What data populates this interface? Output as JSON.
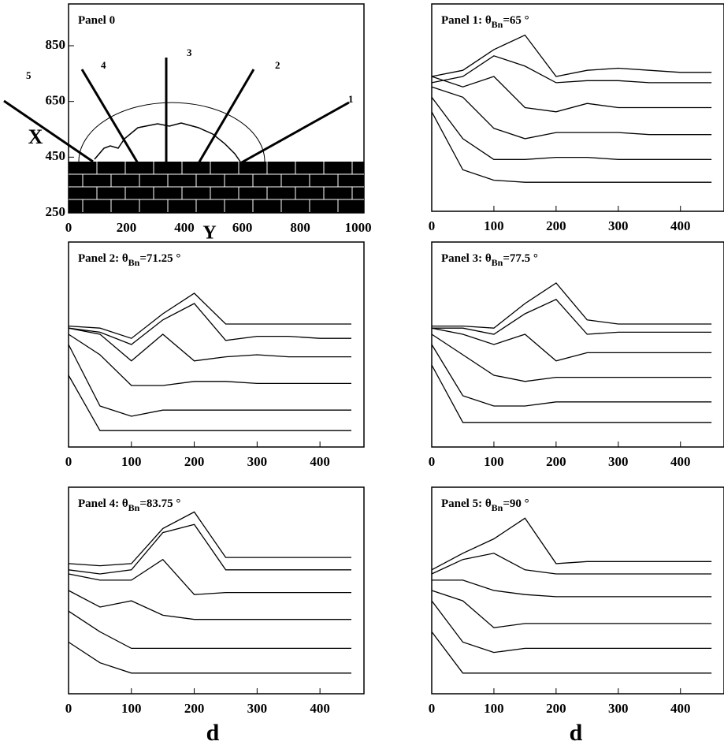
{
  "chart_data": [
    {
      "type": "diagram",
      "title": {
        "text": "Panel 0"
      },
      "xlabel": "Y",
      "ylabel": "X",
      "xlim": [
        0,
        1020
      ],
      "ylim": [
        250,
        1000
      ],
      "xticks": [
        0,
        200,
        400,
        600,
        800,
        1000
      ],
      "yticks": [
        250,
        450,
        650,
        850
      ],
      "ray_labels": [
        "1",
        "2",
        "3",
        "4",
        "5"
      ]
    },
    {
      "type": "line",
      "title": {
        "text": "Panel 1: θ",
        "sub": "Bn",
        "rest": "=65 °"
      },
      "color": "#000000",
      "xlim": [
        0,
        470
      ],
      "ylim": [
        0,
        10
      ],
      "xticks": [
        0,
        100,
        200,
        300,
        400
      ],
      "x": [
        0,
        50,
        100,
        150,
        200,
        250,
        300,
        350,
        400,
        450
      ],
      "series": [
        {
          "values": [
            4.8,
            2.0,
            1.5,
            1.4,
            1.4,
            1.4,
            1.4,
            1.4,
            1.4,
            1.4
          ]
        },
        {
          "values": [
            5.5,
            3.5,
            2.5,
            2.5,
            2.6,
            2.6,
            2.5,
            2.5,
            2.5,
            2.5
          ]
        },
        {
          "values": [
            6.0,
            5.5,
            4.0,
            3.5,
            3.8,
            3.8,
            3.8,
            3.7,
            3.7,
            3.7
          ]
        },
        {
          "values": [
            6.5,
            6.0,
            6.5,
            5.0,
            4.8,
            5.2,
            5.0,
            5.0,
            5.0,
            5.0
          ]
        },
        {
          "values": [
            6.2,
            6.5,
            7.5,
            7.0,
            6.2,
            6.3,
            6.3,
            6.2,
            6.2,
            6.2
          ]
        },
        {
          "values": [
            6.5,
            6.8,
            7.8,
            8.5,
            6.5,
            6.8,
            6.9,
            6.8,
            6.7,
            6.7
          ]
        }
      ]
    },
    {
      "type": "line",
      "title": {
        "text": "Panel 2: θ",
        "sub": "Bn",
        "rest": "=71.25 °"
      },
      "color": "#000000",
      "xlim": [
        0,
        470
      ],
      "ylim": [
        0,
        10
      ],
      "xticks": [
        0,
        100,
        200,
        300,
        400
      ],
      "x": [
        0,
        50,
        100,
        150,
        200,
        250,
        300,
        350,
        400,
        450
      ],
      "series": [
        {
          "values": [
            3.5,
            0.8,
            0.8,
            0.8,
            0.8,
            0.8,
            0.8,
            0.8,
            0.8,
            0.8
          ]
        },
        {
          "values": [
            5.0,
            2.0,
            1.5,
            1.8,
            1.8,
            1.8,
            1.8,
            1.8,
            1.8,
            1.8
          ]
        },
        {
          "values": [
            5.5,
            4.5,
            3.0,
            3.0,
            3.2,
            3.2,
            3.1,
            3.1,
            3.1,
            3.1
          ]
        },
        {
          "values": [
            5.8,
            5.5,
            4.2,
            5.5,
            4.2,
            4.4,
            4.5,
            4.4,
            4.4,
            4.4
          ]
        },
        {
          "values": [
            5.8,
            5.6,
            5.0,
            6.2,
            7.0,
            5.2,
            5.4,
            5.4,
            5.3,
            5.3
          ]
        },
        {
          "values": [
            5.9,
            5.8,
            5.3,
            6.5,
            7.5,
            6.0,
            6.0,
            6.0,
            6.0,
            6.0
          ]
        }
      ]
    },
    {
      "type": "line",
      "title": {
        "text": "Panel 3: θ",
        "sub": "Bn",
        "rest": "=77.5 °"
      },
      "color": "#000000",
      "xlim": [
        0,
        470
      ],
      "ylim": [
        0,
        10
      ],
      "xticks": [
        0,
        100,
        200,
        300,
        400
      ],
      "x": [
        0,
        50,
        100,
        150,
        200,
        250,
        300,
        350,
        400,
        450
      ],
      "series": [
        {
          "values": [
            4.0,
            1.2,
            1.2,
            1.2,
            1.2,
            1.2,
            1.2,
            1.2,
            1.2,
            1.2
          ]
        },
        {
          "values": [
            5.0,
            2.5,
            2.0,
            2.0,
            2.2,
            2.2,
            2.2,
            2.2,
            2.2,
            2.2
          ]
        },
        {
          "values": [
            5.5,
            4.5,
            3.5,
            3.2,
            3.4,
            3.4,
            3.4,
            3.4,
            3.4,
            3.4
          ]
        },
        {
          "values": [
            5.8,
            5.5,
            5.0,
            5.5,
            4.2,
            4.6,
            4.6,
            4.6,
            4.6,
            4.6
          ]
        },
        {
          "values": [
            5.8,
            5.8,
            5.5,
            6.5,
            7.2,
            5.5,
            5.6,
            5.6,
            5.6,
            5.6
          ]
        },
        {
          "values": [
            5.9,
            5.9,
            5.8,
            7.0,
            8.0,
            6.2,
            6.0,
            6.0,
            6.0,
            6.0
          ]
        }
      ]
    },
    {
      "type": "line",
      "title": {
        "text": "Panel 4: θ",
        "sub": "Bn",
        "rest": "=83.75 °"
      },
      "color": "#000000",
      "xlabel": "d",
      "xlim": [
        0,
        470
      ],
      "ylim": [
        0,
        10
      ],
      "xticks": [
        0,
        100,
        200,
        300,
        400
      ],
      "x": [
        0,
        50,
        100,
        150,
        200,
        250,
        300,
        350,
        400,
        450
      ],
      "series": [
        {
          "values": [
            2.5,
            1.5,
            1.0,
            1.0,
            1.0,
            1.0,
            1.0,
            1.0,
            1.0,
            1.0
          ]
        },
        {
          "values": [
            4.0,
            3.0,
            2.2,
            2.2,
            2.2,
            2.2,
            2.2,
            2.2,
            2.2,
            2.2
          ]
        },
        {
          "values": [
            5.0,
            4.2,
            4.5,
            3.8,
            3.6,
            3.6,
            3.6,
            3.6,
            3.6,
            3.6
          ]
        },
        {
          "values": [
            5.8,
            5.5,
            5.5,
            6.5,
            4.8,
            4.9,
            4.9,
            4.9,
            4.9,
            4.9
          ]
        },
        {
          "values": [
            6.0,
            5.8,
            6.0,
            7.8,
            8.2,
            6.0,
            6.0,
            6.0,
            6.0,
            6.0
          ]
        },
        {
          "values": [
            6.3,
            6.2,
            6.3,
            8.0,
            8.8,
            6.6,
            6.6,
            6.6,
            6.6,
            6.6
          ]
        }
      ]
    },
    {
      "type": "line",
      "title": {
        "text": "Panel 5: θ",
        "sub": "Bn",
        "rest": "=90 °"
      },
      "color": "#000000",
      "xlabel": "d",
      "xlim": [
        0,
        470
      ],
      "ylim": [
        0,
        10
      ],
      "xticks": [
        0,
        100,
        200,
        300,
        400
      ],
      "x": [
        0,
        50,
        100,
        150,
        200,
        250,
        300,
        350,
        400,
        450
      ],
      "series": [
        {
          "values": [
            3.0,
            1.0,
            1.0,
            1.0,
            1.0,
            1.0,
            1.0,
            1.0,
            1.0,
            1.0
          ]
        },
        {
          "values": [
            4.5,
            2.5,
            2.0,
            2.2,
            2.2,
            2.2,
            2.2,
            2.2,
            2.2,
            2.2
          ]
        },
        {
          "values": [
            5.0,
            4.5,
            3.2,
            3.4,
            3.4,
            3.4,
            3.4,
            3.4,
            3.4,
            3.4
          ]
        },
        {
          "values": [
            5.5,
            5.5,
            5.0,
            4.8,
            4.7,
            4.7,
            4.7,
            4.7,
            4.7,
            4.7
          ]
        },
        {
          "values": [
            5.8,
            6.5,
            6.8,
            6.0,
            5.8,
            5.8,
            5.8,
            5.8,
            5.8,
            5.8
          ]
        },
        {
          "values": [
            6.0,
            6.8,
            7.5,
            8.5,
            6.3,
            6.4,
            6.4,
            6.4,
            6.4,
            6.4
          ]
        }
      ]
    }
  ]
}
